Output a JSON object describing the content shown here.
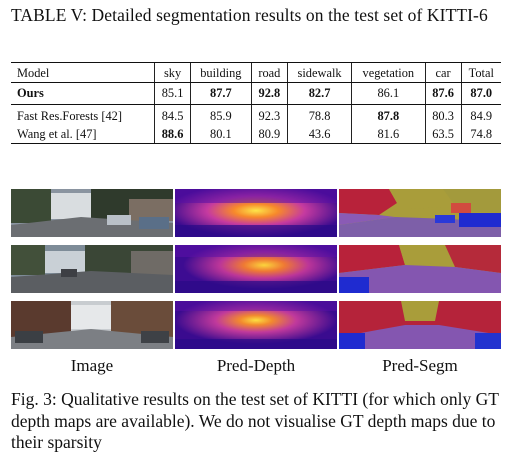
{
  "table_caption": "TABLE V: Detailed segmentation results on the test set of KITTI-6",
  "table": {
    "headers": [
      "Model",
      "sky",
      "building",
      "road",
      "sidewalk",
      "vegetation",
      "car",
      "Total"
    ],
    "rows": [
      {
        "model": "Ours",
        "values": [
          "85.1",
          "87.7",
          "92.8",
          "82.7",
          "86.1",
          "87.6",
          "87.0"
        ],
        "bold_model": true,
        "bold": [
          false,
          true,
          true,
          true,
          false,
          true,
          true
        ]
      },
      {
        "model": "Fast Res.Forests [42]",
        "values": [
          "84.5",
          "85.9",
          "92.3",
          "78.8",
          "87.8",
          "80.3",
          "84.9"
        ],
        "bold_model": false,
        "bold": [
          false,
          false,
          false,
          false,
          true,
          false,
          false
        ]
      },
      {
        "model": "Wang et al. [47]",
        "values": [
          "88.6",
          "80.1",
          "80.9",
          "43.6",
          "81.6",
          "63.5",
          "74.8"
        ],
        "bold_model": false,
        "bold": [
          true,
          false,
          false,
          false,
          false,
          false,
          false
        ]
      }
    ]
  },
  "figure": {
    "column_labels": [
      "Image",
      "Pred-Depth",
      "Pred-Segm"
    ],
    "caption": "Fig. 3: Qualitative results on the test set of KITTI (for which only GT depth maps are available). We do not visualise GT depth maps due to their sparsity"
  }
}
